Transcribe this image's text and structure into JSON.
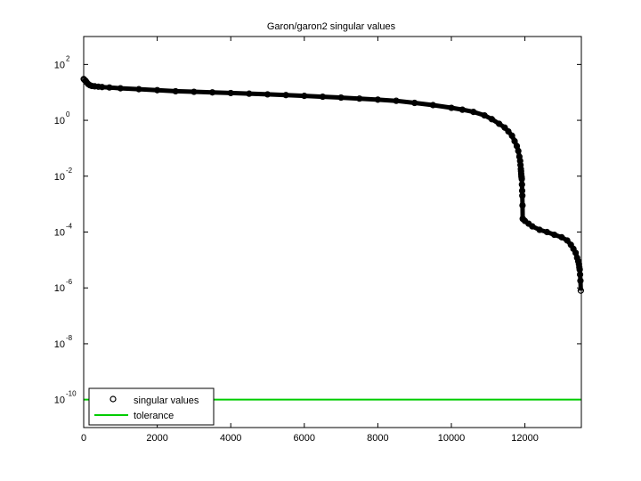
{
  "chart_data": {
    "type": "scatter",
    "title": "Garon/garon2 singular values",
    "xlabel": "",
    "ylabel": "",
    "x_scale": "linear",
    "y_scale": "log",
    "xlim": [
      0,
      13535
    ],
    "ylim": [
      1e-11,
      1000
    ],
    "x_ticks": [
      0,
      2000,
      4000,
      6000,
      8000,
      10000,
      12000
    ],
    "x_tick_labels": [
      "0",
      "2000",
      "4000",
      "6000",
      "8000",
      "10000",
      "12000"
    ],
    "y_ticks": [
      1e-10,
      1e-08,
      1e-06,
      0.0001,
      0.01,
      1,
      100
    ],
    "y_tick_labels": [
      {
        "base": "10",
        "exp": "-10"
      },
      {
        "base": "10",
        "exp": "-8"
      },
      {
        "base": "10",
        "exp": "-6"
      },
      {
        "base": "10",
        "exp": "-4"
      },
      {
        "base": "10",
        "exp": "-2"
      },
      {
        "base": "10",
        "exp": "0"
      },
      {
        "base": "10",
        "exp": "2"
      }
    ],
    "grid": false,
    "legend_position": "bottom-left",
    "series": [
      {
        "name": "singular values",
        "style": "circle-markers",
        "color": "#000000",
        "x": [
          1,
          20,
          50,
          80,
          120,
          170,
          220,
          300,
          400,
          500,
          700,
          1000,
          1500,
          2000,
          2500,
          3000,
          3500,
          4000,
          4500,
          5000,
          5500,
          6000,
          6500,
          7000,
          7500,
          8000,
          8500,
          9000,
          9500,
          10000,
          10300,
          10600,
          10900,
          11100,
          11300,
          11450,
          11550,
          11650,
          11720,
          11780,
          11820,
          11850,
          11870,
          11880,
          11890,
          11895,
          11900,
          11905,
          11910,
          11915,
          11920,
          11925,
          11930,
          11935,
          11940,
          11950,
          12000,
          12100,
          12200,
          12400,
          12600,
          12800,
          13000,
          13150,
          13250,
          13320,
          13380,
          13420,
          13450,
          13470,
          13480,
          13490,
          13500,
          13510,
          13520
        ],
        "y": [
          30,
          28,
          26,
          23,
          20,
          18,
          17,
          16.5,
          16,
          15.5,
          15,
          14,
          13,
          12,
          11,
          10.5,
          10,
          9.5,
          9,
          8.5,
          8,
          7.5,
          7,
          6.5,
          6,
          5.5,
          5,
          4.2,
          3.5,
          2.8,
          2.4,
          2,
          1.5,
          1.1,
          0.75,
          0.55,
          0.4,
          0.28,
          0.18,
          0.12,
          0.08,
          0.05,
          0.035,
          0.025,
          0.018,
          0.015,
          0.012,
          0.01,
          0.009,
          0.008,
          0.005,
          0.003,
          0.002,
          0.0009,
          0.0003,
          0.00029,
          0.00025,
          0.0002,
          0.00016,
          0.00012,
          0.0001,
          8e-05,
          6.5e-05,
          5e-05,
          3.5e-05,
          2.5e-05,
          1.8e-05,
          1.2e-05,
          9e-06,
          7e-06,
          5.5e-06,
          4.5e-06,
          3e-06,
          1.8e-06,
          8e-07
        ]
      },
      {
        "name": "tolerance",
        "style": "line",
        "color": "#00cc00",
        "x": [
          0,
          13535
        ],
        "y": [
          1e-10,
          1e-10
        ]
      }
    ]
  }
}
